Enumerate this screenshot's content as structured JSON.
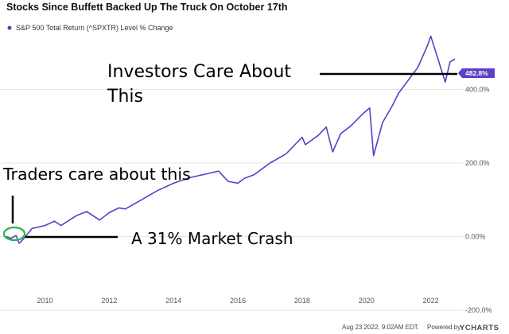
{
  "chart_data": {
    "type": "line",
    "title": "Stocks Since Buffett Backed Up The Truck On October 17th",
    "xlabel": "",
    "ylabel": "",
    "xlim": [
      2008.8,
      2022.9
    ],
    "ylim": [
      -200,
      600
    ],
    "x_ticks": [
      2010,
      2012,
      2014,
      2016,
      2018,
      2020,
      2022
    ],
    "x_tick_labels": [
      "2010",
      "2012",
      "2014",
      "2016",
      "2018",
      "2020",
      "2022"
    ],
    "y_ticks": [
      -200,
      0,
      200,
      400
    ],
    "y_tick_labels": [
      "-200.0%",
      "0.00%",
      "200.0%",
      "400.0%"
    ],
    "grid": "horizontal",
    "legend": "top-left",
    "series": [
      {
        "name": "S&P 500 Total Return (^SPXTR) Level % Change",
        "color": "#5b3fc4",
        "x": [
          2008.8,
          2008.95,
          2009.1,
          2009.2,
          2009.35,
          2009.6,
          2010.0,
          2010.3,
          2010.5,
          2011.0,
          2011.3,
          2011.7,
          2012.0,
          2012.3,
          2012.5,
          2013.0,
          2013.5,
          2014.0,
          2014.5,
          2015.0,
          2015.4,
          2015.7,
          2016.0,
          2016.2,
          2016.5,
          2017.0,
          2017.5,
          2018.0,
          2018.1,
          2018.5,
          2018.75,
          2018.95,
          2019.2,
          2019.5,
          2019.9,
          2020.1,
          2020.22,
          2020.5,
          2020.8,
          2021.0,
          2021.3,
          2021.6,
          2021.9,
          2022.0,
          2022.2,
          2022.45,
          2022.6,
          2022.75
        ],
        "values": [
          0,
          -5,
          3,
          -18,
          -5,
          22,
          30,
          42,
          30,
          58,
          68,
          45,
          65,
          78,
          75,
          100,
          125,
          145,
          160,
          170,
          178,
          150,
          145,
          158,
          168,
          200,
          225,
          270,
          250,
          275,
          298,
          230,
          280,
          300,
          335,
          350,
          220,
          310,
          355,
          390,
          425,
          460,
          520,
          545,
          490,
          420,
          475,
          482.8
        ]
      }
    ],
    "last_value_label": "482.8%",
    "annotations": [
      "Investors Care About",
      "This",
      "Traders care about this",
      "A 31% Market Crash"
    ]
  },
  "footer": {
    "timestamp": "Aug 23 2022, 9:02AM EDT.",
    "powered": "Powered by",
    "brand": "YCHARTS"
  }
}
